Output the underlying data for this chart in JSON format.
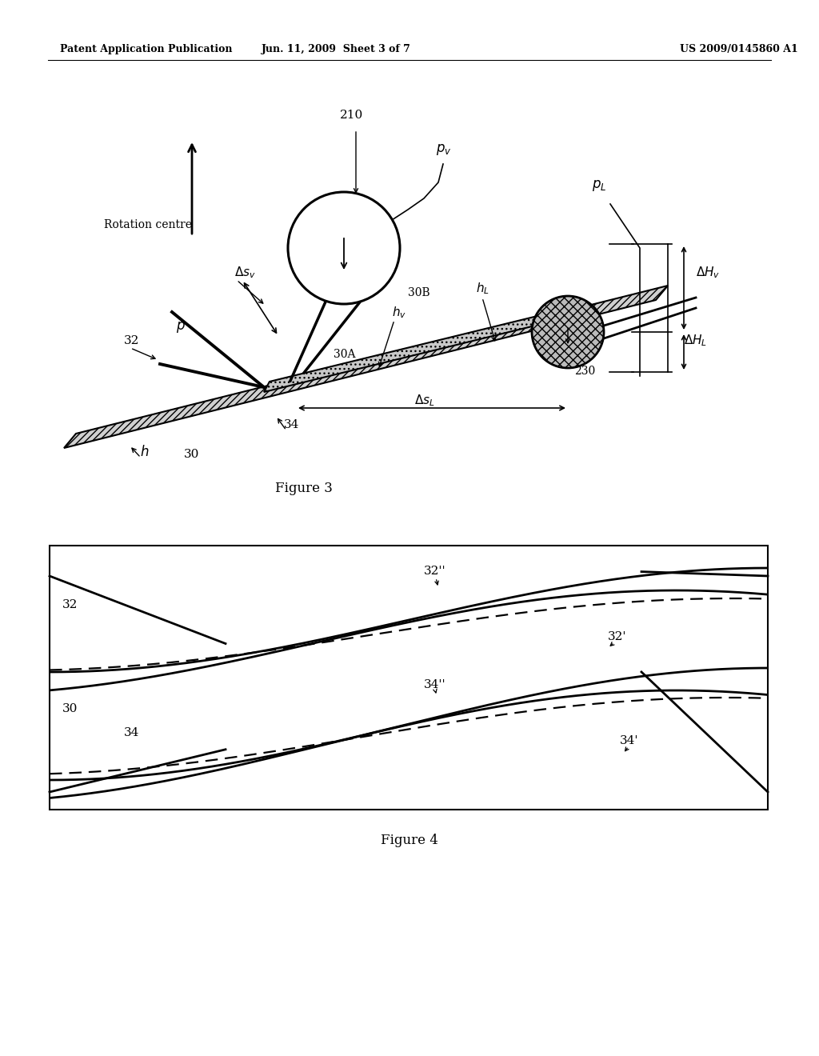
{
  "page_header_left": "Patent Application Publication",
  "page_header_mid": "Jun. 11, 2009  Sheet 3 of 7",
  "page_header_right": "US 2009/0145860 A1",
  "fig3_caption": "Figure 3",
  "fig4_caption": "Figure 4",
  "bg_color": "#ffffff"
}
